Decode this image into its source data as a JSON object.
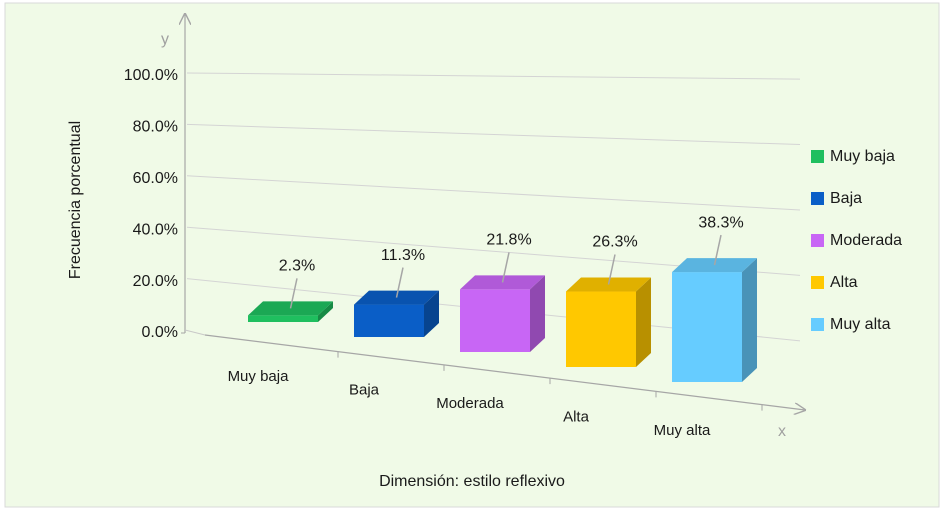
{
  "chart_data": {
    "type": "bar3d",
    "x_axis_label": "Dimensión: estilo reflexivo",
    "y_axis_label": "Frecuencia porcentual",
    "axis_letters": {
      "x": "x",
      "y": "y"
    },
    "categories": [
      "Muy baja",
      "Baja",
      "Moderada",
      "Alta",
      "Muy alta"
    ],
    "values": [
      2.3,
      11.3,
      21.8,
      26.3,
      38.3
    ],
    "value_labels": [
      "2.3%",
      "11.3%",
      "21.8%",
      "26.3%",
      "38.3%"
    ],
    "colors": [
      "#1fbf5f",
      "#0a5ec7",
      "#c866f5",
      "#ffc800",
      "#66ccff"
    ],
    "ylim": [
      0,
      100
    ],
    "yticks": [
      {
        "value": 0,
        "label": "0.0%"
      },
      {
        "value": 20,
        "label": "20.0%"
      },
      {
        "value": 40,
        "label": "40.0%"
      },
      {
        "value": 60,
        "label": "60.0%"
      },
      {
        "value": 80,
        "label": "80.0%"
      },
      {
        "value": 100,
        "label": "100.0%"
      }
    ],
    "grid": true,
    "legend": "right"
  }
}
